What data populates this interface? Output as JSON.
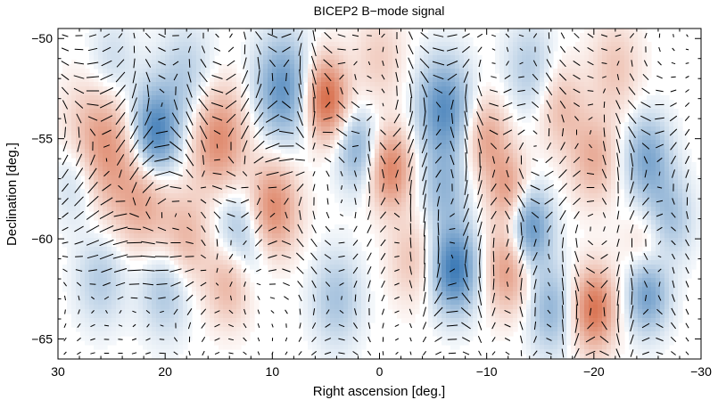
{
  "chart_data": {
    "type": "heatmap",
    "title": "BICEP2 B−mode signal",
    "xlabel": "Right ascension [deg.]",
    "ylabel": "Declination [deg.]",
    "xlim": [
      30,
      -30
    ],
    "ylim": [
      -66,
      -49.5
    ],
    "x_ticks": [
      30,
      20,
      10,
      0,
      -10,
      -20,
      -30
    ],
    "x_tick_labels": [
      "30",
      "20",
      "10",
      "0",
      "−10",
      "−20",
      "−30"
    ],
    "y_ticks": [
      -50,
      -55,
      -60,
      -65
    ],
    "y_tick_labels": [
      "−50",
      "−55",
      "−60",
      "−65"
    ],
    "grid": false,
    "colors": {
      "positive": "#d4603a",
      "negative": "#2c6fb0",
      "neutral": "#ffffff",
      "vector": "#000000"
    },
    "blobs": [
      {
        "ra": 26,
        "dec": -55.5,
        "amp": 0.7,
        "s": 2.2
      },
      {
        "ra": 22,
        "dec": -58,
        "amp": 0.5,
        "s": 1.8
      },
      {
        "ra": 21,
        "dec": -54.8,
        "amp": -0.9,
        "s": 1.6
      },
      {
        "ra": 28,
        "dec": -57,
        "amp": -0.4,
        "s": 1.6
      },
      {
        "ra": 15,
        "dec": -55,
        "amp": 0.7,
        "s": 1.8
      },
      {
        "ra": 18,
        "dec": -52,
        "amp": -0.3,
        "s": 1.8
      },
      {
        "ra": 9,
        "dec": -52.5,
        "amp": -0.7,
        "s": 1.8
      },
      {
        "ra": 5,
        "dec": -53,
        "amp": 0.95,
        "s": 1.4
      },
      {
        "ra": 10,
        "dec": -58.5,
        "amp": 0.75,
        "s": 1.6
      },
      {
        "ra": 13,
        "dec": -60,
        "amp": -0.5,
        "s": 1.8
      },
      {
        "ra": 18,
        "dec": -60,
        "amp": 0.4,
        "s": 1.6
      },
      {
        "ra": 14,
        "dec": -62,
        "amp": 0.55,
        "s": 1.5
      },
      {
        "ra": 20,
        "dec": -62.5,
        "amp": -0.35,
        "s": 1.6
      },
      {
        "ra": 2,
        "dec": -55.5,
        "amp": -0.5,
        "s": 1.4
      },
      {
        "ra": -1,
        "dec": -56.5,
        "amp": 0.75,
        "s": 1.4
      },
      {
        "ra": -6,
        "dec": -53.5,
        "amp": -0.75,
        "s": 1.7
      },
      {
        "ra": -10,
        "dec": -55,
        "amp": 0.5,
        "s": 1.4
      },
      {
        "ra": -6,
        "dec": -57.5,
        "amp": -0.4,
        "s": 1.5
      },
      {
        "ra": -12,
        "dec": -57.5,
        "amp": 0.55,
        "s": 1.3
      },
      {
        "ra": -14,
        "dec": -59.5,
        "amp": -0.75,
        "s": 1.4
      },
      {
        "ra": -7,
        "dec": -61.5,
        "amp": -0.9,
        "s": 1.5
      },
      {
        "ra": -12,
        "dec": -61.5,
        "amp": 0.6,
        "s": 1.5
      },
      {
        "ra": -20,
        "dec": -63.5,
        "amp": 0.85,
        "s": 1.4
      },
      {
        "ra": -25,
        "dec": -62.5,
        "amp": -0.8,
        "s": 1.4
      },
      {
        "ra": -16,
        "dec": -63.5,
        "amp": -0.45,
        "s": 1.5
      },
      {
        "ra": -20,
        "dec": -56,
        "amp": 0.45,
        "s": 1.5
      },
      {
        "ra": -25,
        "dec": -56,
        "amp": -0.55,
        "s": 1.5
      },
      {
        "ra": -27,
        "dec": -59,
        "amp": -0.4,
        "s": 1.5
      },
      {
        "ra": -25,
        "dec": -61,
        "amp": 0.4,
        "s": 1.5
      },
      {
        "ra": -17,
        "dec": -53.5,
        "amp": 0.35,
        "s": 1.5
      },
      {
        "ra": -14,
        "dec": -51.5,
        "amp": -0.3,
        "s": 1.6
      },
      {
        "ra": -22,
        "dec": -51.5,
        "amp": 0.3,
        "s": 1.6
      },
      {
        "ra": 0,
        "dec": -51,
        "amp": 0.25,
        "s": 1.6
      },
      {
        "ra": -3,
        "dec": -61,
        "amp": 0.3,
        "s": 1.5
      },
      {
        "ra": 4,
        "dec": -63,
        "amp": -0.35,
        "s": 1.6
      },
      {
        "ra": 26,
        "dec": -62,
        "amp": -0.3,
        "s": 1.6
      },
      {
        "ra": 25,
        "dec": -51.5,
        "amp": -0.25,
        "s": 1.6
      }
    ]
  }
}
